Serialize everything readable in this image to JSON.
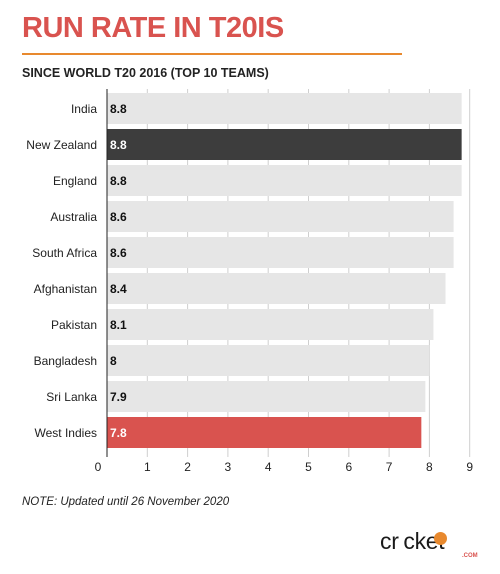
{
  "header": {
    "title": "RUN RATE IN T20IS",
    "subtitle": "SINCE WORLD T20 2016 (TOP 10 TEAMS)"
  },
  "note": "NOTE: Updated until 26 November 2020",
  "logo": {
    "text": "cricket",
    "suffix": ".COM",
    "accent_color": "#e8892e"
  },
  "colors": {
    "default_bar": "#e6e6e6",
    "highlight_dark": "#3d3d3d",
    "highlight_red": "#d9534f"
  },
  "chart_data": {
    "type": "bar",
    "orientation": "horizontal",
    "title": "RUN RATE IN T20IS",
    "subtitle": "SINCE WORLD T20 2016 (TOP 10 TEAMS)",
    "categories": [
      "India",
      "New Zealand",
      "England",
      "Australia",
      "South Africa",
      "Afghanistan",
      "Pakistan",
      "Bangladesh",
      "Sri Lanka",
      "West Indies"
    ],
    "values": [
      8.8,
      8.8,
      8.8,
      8.6,
      8.6,
      8.4,
      8.1,
      8,
      7.9,
      7.8
    ],
    "labels": [
      "8.8",
      "8.8",
      "8.8",
      "8.6",
      "8.6",
      "8.4",
      "8.1",
      "8",
      "7.9",
      "7.8"
    ],
    "highlights": [
      "",
      "dark",
      "",
      "",
      "",
      "",
      "",
      "",
      "",
      "red"
    ],
    "xlim": [
      0,
      9
    ],
    "xticks": [
      0,
      1,
      2,
      3,
      4,
      5,
      6,
      7,
      8,
      9
    ],
    "grid": true
  }
}
